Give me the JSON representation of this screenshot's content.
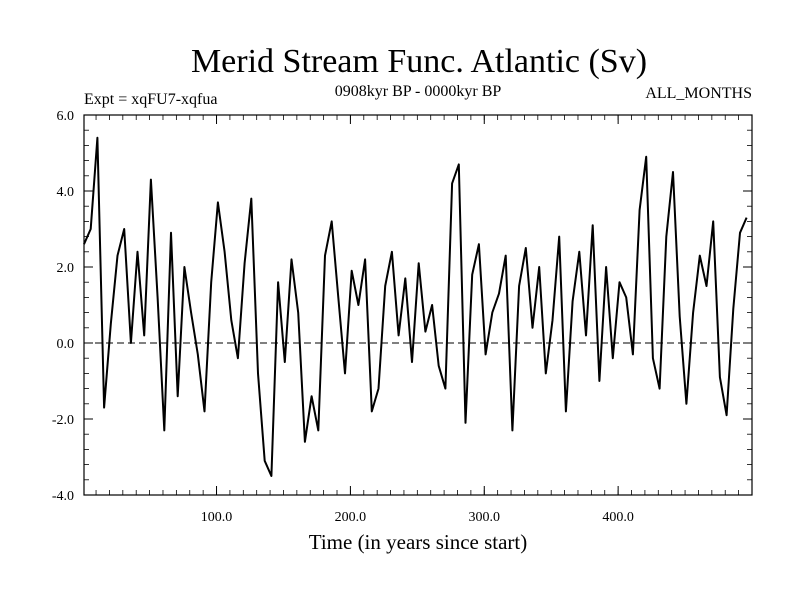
{
  "chart_data": {
    "type": "line",
    "title": "Merid Stream Func. Atlantic (Sv)",
    "subtitle_left": "Expt = xqFU7-xqfua",
    "subtitle_center": "0908kyr BP - 0000kyr BP",
    "subtitle_right": "ALL_MONTHS",
    "xlabel": "Time (in years since start)",
    "ylabel": "",
    "xlim": [
      1,
      500
    ],
    "ylim": [
      -4.0,
      6.0
    ],
    "x_ticks": [
      100,
      200,
      300,
      400
    ],
    "x_tick_labels": [
      "100.0",
      "200.0",
      "300.0",
      "400.0"
    ],
    "y_ticks": [
      -4,
      -2,
      0,
      2,
      4,
      6
    ],
    "y_tick_labels": [
      "-4.0",
      "-2.0",
      "0.0",
      "2.0",
      "4.0",
      "6.0"
    ],
    "reference_line": 0.0,
    "series": [
      {
        "name": "Merid Stream Func. Atlantic",
        "x_start": 1,
        "x_step": 5,
        "values": [
          2.6,
          3.0,
          5.4,
          -1.7,
          0.5,
          2.3,
          3.0,
          0.0,
          2.4,
          0.2,
          4.3,
          1.2,
          -2.3,
          2.9,
          -1.4,
          2.0,
          0.8,
          -0.3,
          -1.8,
          1.6,
          3.7,
          2.4,
          0.6,
          -0.4,
          2.1,
          3.8,
          -0.8,
          -3.1,
          -3.5,
          1.6,
          -0.5,
          2.2,
          0.8,
          -2.6,
          -1.4,
          -2.3,
          2.3,
          3.2,
          1.2,
          -0.8,
          1.9,
          1.0,
          2.2,
          -1.8,
          -1.2,
          1.5,
          2.4,
          0.2,
          1.7,
          -0.5,
          2.1,
          0.3,
          1.0,
          -0.6,
          -1.2,
          4.2,
          4.7,
          -2.1,
          1.8,
          2.6,
          -0.3,
          0.8,
          1.3,
          2.3,
          -2.3,
          1.5,
          2.5,
          0.4,
          2.0,
          -0.8,
          0.6,
          2.8,
          -1.8,
          1.1,
          2.4,
          0.2,
          3.1,
          -1.0,
          2.0,
          -0.4,
          1.6,
          1.2,
          -0.3,
          3.5,
          4.9,
          -0.4,
          -1.2,
          2.8,
          4.5,
          0.7,
          -1.6,
          0.8,
          2.3,
          1.5,
          3.2,
          -0.9,
          -1.9,
          0.9,
          2.9,
          3.3
        ]
      }
    ]
  }
}
